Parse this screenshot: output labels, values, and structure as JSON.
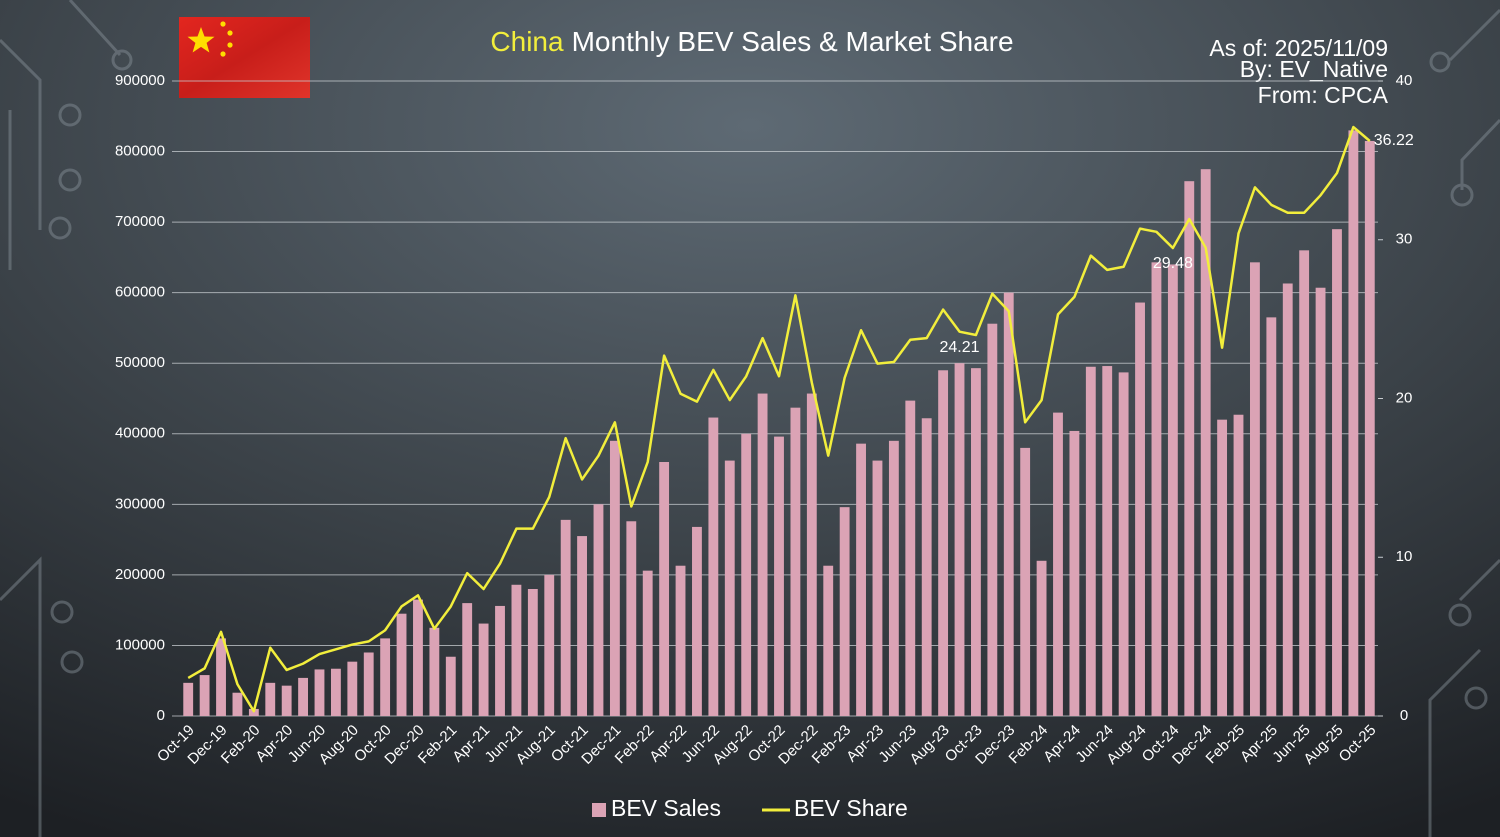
{
  "chart_data": {
    "type": "bar-line",
    "title_highlight": "China",
    "title": "Monthly BEV Sales & Market Share",
    "annotations": [
      "As of: 2025/11/09",
      "By: EV_Native",
      "From: CPCA"
    ],
    "categories": [
      "Oct-19",
      null,
      "Dec-19",
      null,
      "Feb-20",
      null,
      "Apr-20",
      null,
      "Jun-20",
      null,
      "Aug-20",
      null,
      "Oct-20",
      null,
      "Dec-20",
      null,
      "Feb-21",
      null,
      "Apr-21",
      null,
      "Jun-21",
      null,
      "Aug-21",
      null,
      "Oct-21",
      null,
      "Dec-21",
      null,
      "Feb-22",
      null,
      "Apr-22",
      null,
      "Jun-22",
      null,
      "Aug-22",
      null,
      "Oct-22",
      null,
      "Dec-22",
      null,
      "Feb-23",
      null,
      "Apr-23",
      null,
      "Jun-23",
      null,
      "Aug-23",
      null,
      "Oct-23",
      null,
      "Dec-23",
      null,
      "Feb-24",
      null,
      "Apr-24",
      null,
      "Jun-24",
      null,
      "Aug-24",
      null,
      "Oct-24",
      null,
      "Dec-24",
      null,
      "Feb-25",
      null,
      "Apr-25",
      null,
      "Jun-25",
      null,
      "Aug-25",
      null,
      "Oct-25"
    ],
    "series": [
      {
        "name": "BEV Sales",
        "type": "bar",
        "color": "#dba3b5",
        "values": [
          47000,
          58000,
          110000,
          33000,
          10000,
          47000,
          43000,
          54000,
          66000,
          67000,
          77000,
          90000,
          110000,
          145000,
          165000,
          125000,
          84000,
          160000,
          131000,
          156000,
          186000,
          180000,
          200000,
          278000,
          255000,
          300000,
          390000,
          276000,
          206000,
          360000,
          213000,
          268000,
          423000,
          362000,
          400000,
          457000,
          396000,
          437000,
          457000,
          213000,
          296000,
          386000,
          362000,
          390000,
          447000,
          422000,
          490000,
          500000,
          493000,
          556000,
          600000,
          380000,
          220000,
          430000,
          404000,
          495000,
          496000,
          487000,
          586000,
          643000,
          640000,
          758000,
          775000,
          420000,
          427000,
          643000,
          565000,
          613000,
          660000,
          607000,
          690000,
          830000,
          815000
        ]
      },
      {
        "name": "BEV Share",
        "type": "line",
        "axis": "y2",
        "color": "#f2ee3c",
        "values": [
          2.4,
          3.0,
          5.3,
          2.0,
          0.3,
          4.3,
          2.9,
          3.3,
          3.9,
          4.2,
          4.5,
          4.7,
          5.4,
          6.9,
          7.6,
          5.5,
          6.9,
          9.0,
          8.0,
          9.6,
          11.8,
          11.8,
          13.8,
          17.5,
          14.9,
          16.4,
          18.5,
          13.2,
          16.0,
          22.7,
          20.3,
          19.8,
          21.8,
          19.9,
          21.4,
          23.8,
          21.4,
          26.5,
          21.0,
          16.4,
          21.3,
          24.3,
          22.2,
          22.3,
          23.7,
          23.8,
          25.6,
          24.21,
          24.0,
          26.6,
          25.5,
          18.5,
          19.9,
          25.3,
          26.4,
          29.0,
          28.1,
          28.3,
          30.7,
          30.5,
          29.48,
          31.3,
          29.5,
          23.2,
          30.4,
          33.3,
          32.2,
          31.7,
          31.7,
          32.8,
          34.2,
          37.1,
          36.22
        ],
        "value_labels": [
          null,
          null,
          null,
          null,
          null,
          null,
          null,
          null,
          null,
          null,
          null,
          null,
          null,
          null,
          null,
          null,
          null,
          null,
          null,
          null,
          null,
          null,
          null,
          null,
          null,
          null,
          null,
          null,
          null,
          null,
          null,
          null,
          null,
          null,
          null,
          null,
          null,
          null,
          null,
          null,
          null,
          null,
          null,
          null,
          null,
          null,
          null,
          "24.21",
          null,
          null,
          null,
          null,
          null,
          null,
          null,
          null,
          null,
          null,
          null,
          null,
          "29.48",
          null,
          null,
          null,
          null,
          null,
          null,
          null,
          null,
          null,
          null,
          null,
          "36.22"
        ]
      }
    ],
    "ylim": [
      0,
      900000
    ],
    "yticks": [
      0,
      100000,
      200000,
      300000,
      400000,
      500000,
      600000,
      700000,
      800000,
      900000
    ],
    "y2lim": [
      0,
      40
    ],
    "y2ticks": [
      0,
      10,
      20,
      30,
      40
    ],
    "grid": true,
    "legend": "bottom"
  }
}
